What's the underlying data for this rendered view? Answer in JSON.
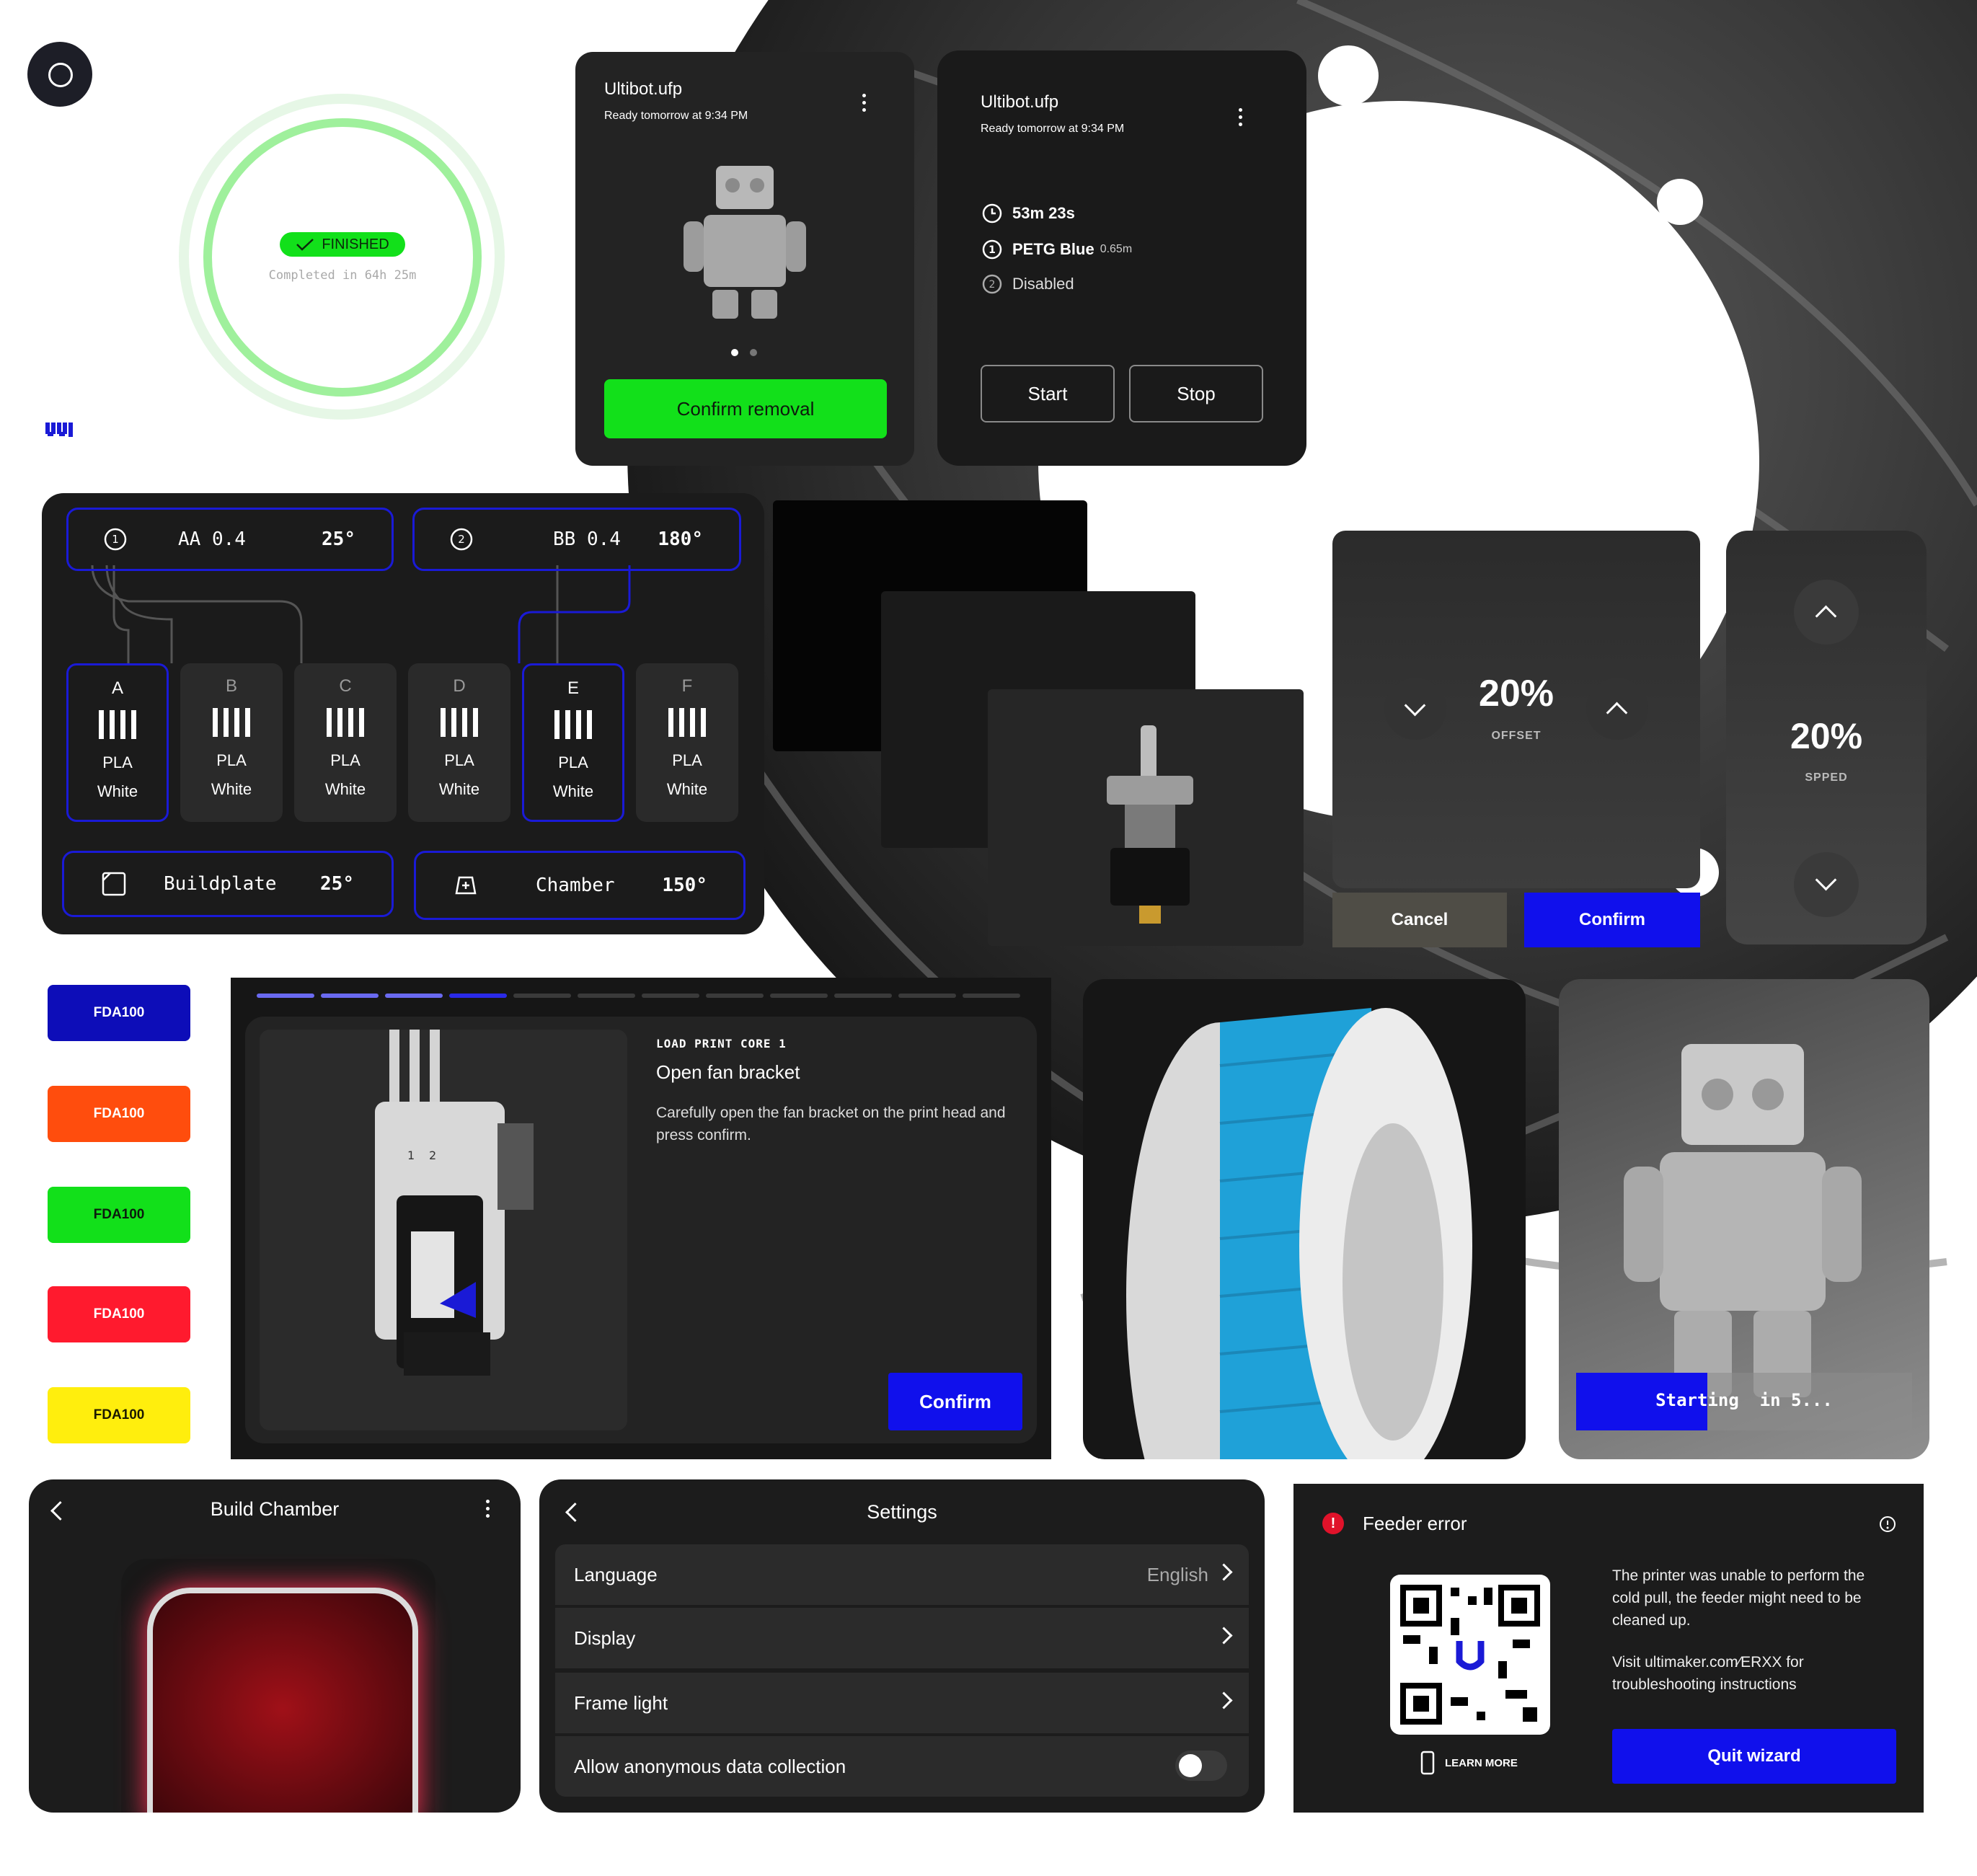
{
  "colors": {
    "brand_blue": "#1010ec",
    "success_green": "#12e01a",
    "card_bg": "#1c1c1c",
    "fda_badges": [
      "#0d0db8",
      "#ff4d0d",
      "#12e01a",
      "#ff1a2e",
      "#ffee0d"
    ]
  },
  "progress_card": {
    "badge": "FINISHED",
    "completed": "Completed in 64h 25m",
    "ring_fraction": 1.0
  },
  "job_card_1": {
    "title": "Ultibot.ufp",
    "subtitle": "Ready tomorrow at 9:34 PM",
    "button": "Confirm removal",
    "carousel_pages": 2,
    "carousel_active": 1
  },
  "job_card_2": {
    "title": "Ultibot.ufp",
    "subtitle": "Ready tomorrow at 9:34 PM",
    "time": "53m 23s",
    "material_1": "PETG Blue",
    "material_1_len": "0.65m",
    "material_2": "Disabled",
    "start": "Start",
    "stop": "Stop"
  },
  "material_panel": {
    "cores": [
      {
        "num": "1",
        "name": "AA 0.4",
        "temp": "25°"
      },
      {
        "num": "2",
        "name": "BB 0.4",
        "temp": "180°"
      }
    ],
    "slots": [
      {
        "letter": "A",
        "material": "PLA",
        "color": "White",
        "active": true
      },
      {
        "letter": "B",
        "material": "PLA",
        "color": "White",
        "active": false
      },
      {
        "letter": "C",
        "material": "PLA",
        "color": "White",
        "active": false
      },
      {
        "letter": "D",
        "material": "PLA",
        "color": "White",
        "active": false
      },
      {
        "letter": "E",
        "material": "PLA",
        "color": "White",
        "active": true
      },
      {
        "letter": "F",
        "material": "PLA",
        "color": "White",
        "active": false
      }
    ],
    "buildplate_label": "Buildplate",
    "buildplate_temp": "25°",
    "chamber_label": "Chamber",
    "chamber_temp": "150°"
  },
  "offset_card": {
    "value": "20%",
    "label": "OFFSET",
    "cancel": "Cancel",
    "confirm": "Confirm"
  },
  "speed_card": {
    "value": "20%",
    "label": "SPPED"
  },
  "fda_badges": [
    "FDA100",
    "FDA100",
    "FDA100",
    "FDA100",
    "FDA100"
  ],
  "wizard": {
    "steps_total": 12,
    "steps_done": 4,
    "eyebrow": "LOAD PRINT CORE 1",
    "title": "Open fan bracket",
    "body": "Carefully open the fan bracket on the print head and press confirm.",
    "confirm": "Confirm",
    "core_labels": [
      "1",
      "2"
    ]
  },
  "starting_card": {
    "text": "Starting  in 5...",
    "progress": 0.39
  },
  "build_chamber": {
    "title": "Build Chamber"
  },
  "settings": {
    "title": "Settings",
    "rows": [
      {
        "label": "Language",
        "value": "English"
      },
      {
        "label": "Display",
        "value": ""
      },
      {
        "label": "Frame light",
        "value": ""
      },
      {
        "label": "Allow anonymous data collection",
        "value": ""
      }
    ],
    "toggle_on": false
  },
  "feeder_error": {
    "title": "Feeder error",
    "body_1": "The printer was unable to perform the cold pull, the feeder might need to be cleaned up.",
    "body_2": "Visit ultimaker.com⁄ERXX for troubleshooting instructions",
    "learn_more": "LEARN MORE",
    "quit": "Quit wizard"
  }
}
